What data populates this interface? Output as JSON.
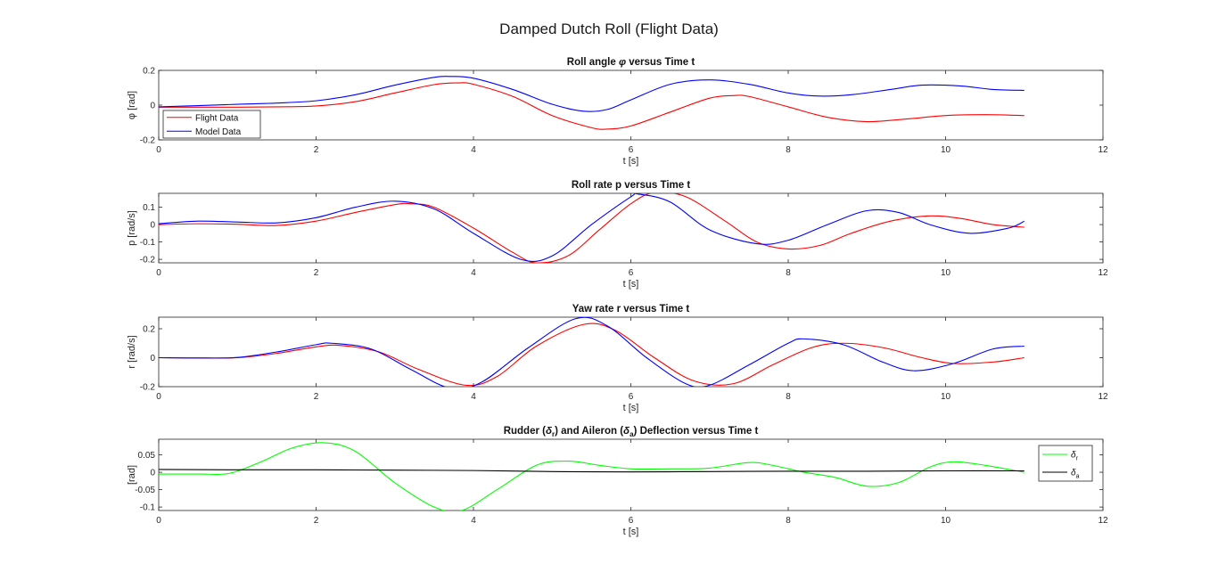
{
  "figure_title": "Damped Dutch Roll (Flight Data)",
  "chart_data": [
    {
      "type": "line",
      "title": "Roll angle φ versus Time t",
      "title_parts": [
        {
          "t": "Roll angle "
        },
        {
          "t": "φ",
          "italic": true
        },
        {
          "t": " versus Time t"
        }
      ],
      "xlabel": "t [s]",
      "ylabel": "φ [rad]",
      "xlim": [
        0,
        12
      ],
      "ylim": [
        -0.2,
        0.2
      ],
      "xticks": [
        0,
        2,
        4,
        6,
        8,
        10,
        12
      ],
      "yticks": [
        -0.2,
        0,
        0.2
      ],
      "ytick_labels": [
        "-0.2",
        "0",
        "0.2"
      ],
      "grid": false,
      "legend": {
        "position": "bottom-left",
        "entries": [
          "Flight Data",
          "Model Data"
        ]
      },
      "series": [
        {
          "name": "Flight Data",
          "color": "#ff0000",
          "x": [
            0,
            0.5,
            1,
            1.5,
            2,
            2.5,
            3,
            3.5,
            3.8,
            4,
            4.5,
            5,
            5.5,
            5.7,
            6,
            6.5,
            7,
            7.3,
            7.5,
            8,
            8.5,
            9,
            9.5,
            10,
            10.5,
            11
          ],
          "y": [
            -0.012,
            -0.012,
            -0.012,
            -0.01,
            -0.005,
            0.02,
            0.07,
            0.118,
            0.128,
            0.12,
            0.05,
            -0.06,
            -0.13,
            -0.138,
            -0.12,
            -0.04,
            0.04,
            0.055,
            0.05,
            -0.01,
            -0.07,
            -0.095,
            -0.08,
            -0.06,
            -0.055,
            -0.06
          ]
        },
        {
          "name": "Model Data",
          "color": "#0000ff",
          "x": [
            0,
            0.5,
            1,
            1.5,
            2,
            2.5,
            3,
            3.5,
            3.7,
            4,
            4.5,
            5,
            5.4,
            5.7,
            6,
            6.5,
            7,
            7.5,
            8,
            8.4,
            8.8,
            9.3,
            9.7,
            10.2,
            10.6,
            11
          ],
          "y": [
            -0.01,
            -0.003,
            0.005,
            0.012,
            0.025,
            0.06,
            0.115,
            0.16,
            0.165,
            0.155,
            0.09,
            0.005,
            -0.035,
            -0.025,
            0.03,
            0.12,
            0.145,
            0.12,
            0.07,
            0.052,
            0.06,
            0.09,
            0.115,
            0.11,
            0.09,
            0.085
          ]
        }
      ]
    },
    {
      "type": "line",
      "title": "Roll rate p versus Time t",
      "title_parts": [
        {
          "t": "Roll rate p versus Time t"
        }
      ],
      "xlabel": "t [s]",
      "ylabel": "p [rad/s]",
      "xlim": [
        0,
        12
      ],
      "ylim": [
        -0.22,
        0.18
      ],
      "xticks": [
        0,
        2,
        4,
        6,
        8,
        10,
        12
      ],
      "yticks": [
        -0.2,
        -0.1,
        0,
        0.1
      ],
      "ytick_labels": [
        "-0.2",
        "-0.1",
        "0",
        "0.1"
      ],
      "grid": false,
      "series": [
        {
          "name": "Flight Data",
          "color": "#ff0000",
          "x": [
            0,
            0.5,
            1,
            1.5,
            2,
            2.5,
            3,
            3.2,
            3.5,
            4,
            4.5,
            4.8,
            5.2,
            5.6,
            6,
            6.3,
            6.7,
            7.2,
            7.6,
            8,
            8.4,
            8.8,
            9.3,
            9.8,
            10.2,
            10.6,
            11
          ],
          "y": [
            0,
            0.005,
            0.002,
            -0.005,
            0.02,
            0.07,
            0.115,
            0.12,
            0.1,
            -0.02,
            -0.16,
            -0.22,
            -0.18,
            -0.03,
            0.12,
            0.185,
            0.16,
            0.02,
            -0.1,
            -0.14,
            -0.12,
            -0.05,
            0.02,
            0.05,
            0.035,
            0.0,
            -0.015
          ]
        },
        {
          "name": "Model Data",
          "color": "#0000ff",
          "x": [
            0,
            0.5,
            1,
            1.5,
            2,
            2.5,
            3,
            3.5,
            4,
            4.6,
            5,
            5.5,
            6,
            6.1,
            6.5,
            7,
            7.6,
            8,
            8.5,
            9,
            9.4,
            9.8,
            10.3,
            10.8,
            11
          ],
          "y": [
            0.005,
            0.02,
            0.015,
            0.01,
            0.04,
            0.1,
            0.135,
            0.09,
            -0.05,
            -0.2,
            -0.18,
            0.0,
            0.16,
            0.175,
            0.13,
            -0.03,
            -0.11,
            -0.09,
            0.0,
            0.08,
            0.07,
            0.0,
            -0.05,
            -0.02,
            0.02
          ]
        }
      ]
    },
    {
      "type": "line",
      "title": "Yaw rate r versus Time t",
      "title_parts": [
        {
          "t": "Yaw rate r versus Time t"
        }
      ],
      "xlabel": "t [s]",
      "ylabel": "r [rad/s]",
      "xlim": [
        0,
        12
      ],
      "ylim": [
        -0.2,
        0.28
      ],
      "xticks": [
        0,
        2,
        4,
        6,
        8,
        10,
        12
      ],
      "yticks": [
        -0.2,
        0,
        0.2
      ],
      "ytick_labels": [
        "-0.2",
        "0",
        "0.2"
      ],
      "grid": false,
      "series": [
        {
          "name": "Flight Data",
          "color": "#ff0000",
          "x": [
            0,
            0.5,
            1,
            1.5,
            2,
            2.3,
            2.8,
            3.3,
            3.9,
            4.3,
            4.8,
            5.4,
            5.8,
            6.3,
            6.8,
            7.3,
            7.8,
            8.3,
            8.7,
            9.2,
            9.7,
            10.1,
            10.6,
            11
          ],
          "y": [
            0,
            -0.002,
            0.0,
            0.03,
            0.075,
            0.085,
            0.04,
            -0.08,
            -0.19,
            -0.13,
            0.08,
            0.23,
            0.19,
            0.0,
            -0.16,
            -0.18,
            -0.05,
            0.07,
            0.1,
            0.07,
            0.0,
            -0.04,
            -0.03,
            0.0
          ]
        },
        {
          "name": "Model Data",
          "color": "#0000ff",
          "x": [
            0,
            0.5,
            1,
            1.5,
            2,
            2.2,
            2.7,
            3.2,
            3.7,
            4.1,
            4.7,
            5.3,
            5.7,
            6.2,
            6.7,
            7.0,
            7.5,
            8.0,
            8.2,
            8.7,
            9.2,
            9.6,
            10.1,
            10.6,
            11
          ],
          "y": [
            0,
            -0.002,
            0.002,
            0.04,
            0.09,
            0.1,
            0.06,
            -0.08,
            -0.21,
            -0.17,
            0.07,
            0.27,
            0.22,
            0.0,
            -0.18,
            -0.19,
            -0.05,
            0.1,
            0.13,
            0.09,
            -0.03,
            -0.09,
            -0.04,
            0.06,
            0.08
          ]
        }
      ]
    },
    {
      "type": "line",
      "title": "Rudder (δr) and Aileron (δa) Deflection versus Time t",
      "title_parts": [
        {
          "t": "Rudder ("
        },
        {
          "t": "δ",
          "italic": true
        },
        {
          "t": "r",
          "sub": true
        },
        {
          "t": ") and Aileron ("
        },
        {
          "t": "δ",
          "italic": true
        },
        {
          "t": "a",
          "sub": true
        },
        {
          "t": ") Deflection versus Time t"
        }
      ],
      "xlabel": "t [s]",
      "ylabel": "[rad]",
      "xlim": [
        0,
        12
      ],
      "ylim": [
        -0.11,
        0.095
      ],
      "xticks": [
        0,
        2,
        4,
        6,
        8,
        10,
        12
      ],
      "yticks": [
        -0.1,
        -0.05,
        0,
        0.05
      ],
      "ytick_labels": [
        "-0.1",
        "-0.05",
        "0",
        "0.05"
      ],
      "grid": false,
      "legend": {
        "position": "outside-right",
        "entries": [
          "δr",
          "δa"
        ]
      },
      "series": [
        {
          "name": "δr",
          "color": "#00ff00",
          "x": [
            0,
            0.5,
            0.9,
            1.3,
            1.7,
            2.1,
            2.5,
            3.0,
            3.5,
            3.85,
            4.3,
            4.8,
            5.2,
            5.6,
            6.0,
            6.5,
            7.0,
            7.5,
            7.8,
            8.2,
            8.6,
            9.0,
            9.4,
            9.8,
            10.1,
            10.5,
            11
          ],
          "y": [
            -0.005,
            -0.005,
            -0.003,
            0.03,
            0.07,
            0.085,
            0.06,
            -0.03,
            -0.1,
            -0.11,
            -0.05,
            0.02,
            0.032,
            0.02,
            0.01,
            0.01,
            0.012,
            0.028,
            0.02,
            0.0,
            -0.015,
            -0.04,
            -0.03,
            0.015,
            0.03,
            0.02,
            0.0
          ]
        },
        {
          "name": "δa",
          "color": "#000000",
          "x": [
            0,
            1,
            2,
            3,
            4,
            5,
            6,
            7,
            8,
            9,
            10,
            11
          ],
          "y": [
            0.008,
            0.007,
            0.007,
            0.006,
            0.005,
            0.002,
            0.001,
            0.002,
            0.003,
            0.003,
            0.004,
            0.004
          ]
        }
      ]
    }
  ]
}
